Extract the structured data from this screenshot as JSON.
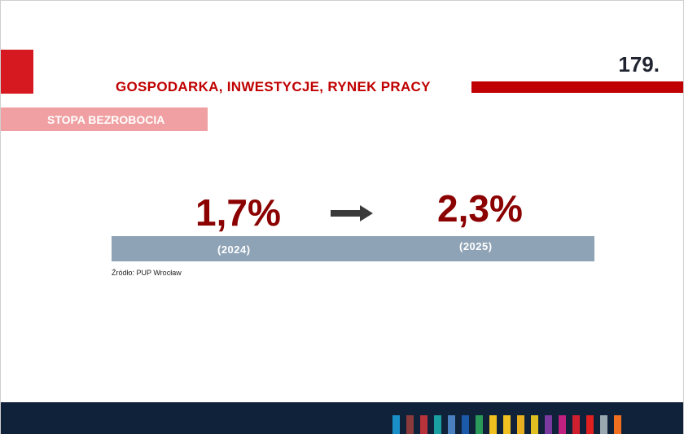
{
  "header": {
    "page_number": "179.",
    "section_title": "GOSPODARKA, INWESTYCJE, RYNEK PRACY",
    "subtitle": "STOPA BEZROBOCIA",
    "accent_color": "#c00000",
    "subtitle_color": "#f0a0a2"
  },
  "main": {
    "value_2024": "1,7%",
    "year_2024": "(2024)",
    "value_2025": "2,3%",
    "year_2025": "(2025)",
    "arrow_icon": "right-arrow-icon",
    "value_color": "#8b0000",
    "bar_color": "#8fa3b6"
  },
  "source": "Źródło: PUP Wrocław",
  "footer": {
    "background_color": "#10223a",
    "stripe_colors": [
      "#1a8fc7",
      "#8a3a3a",
      "#b8323c",
      "#1aa0a0",
      "#4a7fc0",
      "#1a5aa8",
      "#2a9a5a",
      "#f0c020",
      "#f0c020",
      "#e8b020",
      "#e0c020",
      "#7a3aa0",
      "#c02080",
      "#d02030",
      "#e02020",
      "#9aa8b0",
      "#f07020"
    ]
  }
}
